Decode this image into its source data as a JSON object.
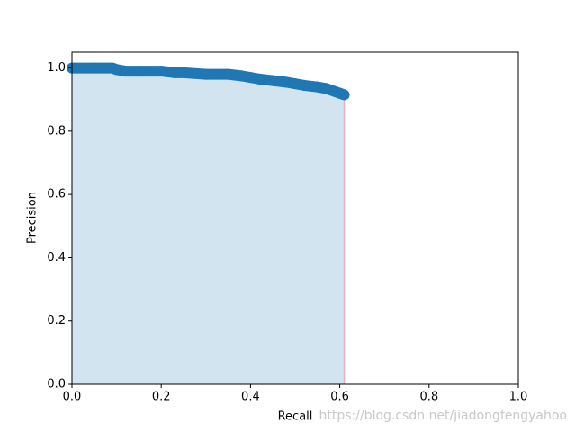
{
  "chart_data": {
    "type": "area",
    "xlabel": "Recall",
    "ylabel": "Precision",
    "watermark": "https://blog.csdn.net/jiadongfengyahoo",
    "x": [
      0,
      0.05,
      0.09,
      0.1,
      0.12,
      0.15,
      0.2,
      0.23,
      0.25,
      0.3,
      0.35,
      0.38,
      0.4,
      0.42,
      0.45,
      0.48,
      0.5,
      0.52,
      0.55,
      0.57,
      0.59,
      0.6,
      0.61
    ],
    "y": [
      1.0,
      1.0,
      1.0,
      0.995,
      0.99,
      0.99,
      0.99,
      0.985,
      0.985,
      0.98,
      0.98,
      0.975,
      0.97,
      0.965,
      0.96,
      0.955,
      0.95,
      0.945,
      0.94,
      0.935,
      0.925,
      0.92,
      0.915
    ],
    "color": "#1f77b4",
    "edge_color": "#e3b3be",
    "xlim": [
      0,
      1
    ],
    "ylim": [
      0,
      1.05
    ],
    "xticks": [
      {
        "value": 0,
        "label": "0.0"
      },
      {
        "value": 0.2,
        "label": "0.2"
      },
      {
        "value": 0.4,
        "label": "0.4"
      },
      {
        "value": 0.6,
        "label": "0.6"
      },
      {
        "value": 0.8,
        "label": "0.8"
      },
      {
        "value": 1,
        "label": "1.0"
      }
    ],
    "yticks": [
      {
        "value": 0,
        "label": "0.0"
      },
      {
        "value": 0.2,
        "label": "0.2"
      },
      {
        "value": 0.4,
        "label": "0.4"
      },
      {
        "value": 0.6,
        "label": "0.6"
      },
      {
        "value": 0.8,
        "label": "0.8"
      },
      {
        "value": 1,
        "label": "1.0"
      }
    ]
  }
}
